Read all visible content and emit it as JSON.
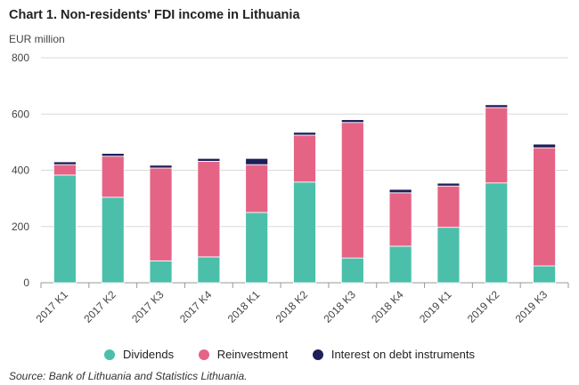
{
  "title": "Chart 1. Non-residents' FDI income in Lithuania",
  "source": "Source: Bank of Lithuania and Statistics Lithuania.",
  "colors": {
    "dividends": "#4bbfaa",
    "reinvestment": "#e56486",
    "interest": "#1f1f5a",
    "grid": "#d9d9d9",
    "axis": "#999999"
  },
  "chart_data": {
    "type": "bar",
    "stacked": true,
    "ylabel": "EUR million",
    "ylim": [
      0,
      800
    ],
    "yticks": [
      0,
      200,
      400,
      600,
      800
    ],
    "grid": true,
    "legend_position": "bottom",
    "categories": [
      "2017 K1",
      "2017 K2",
      "2017 K3",
      "2017 K4",
      "2018 K1",
      "2018 K2",
      "2018 K3",
      "2018 K4",
      "2019 K1",
      "2019 K2",
      "2019 K3"
    ],
    "series": [
      {
        "name": "Dividends",
        "color_key": "dividends",
        "values": [
          383,
          304,
          78,
          92,
          250,
          358,
          88,
          130,
          197,
          355,
          60
        ]
      },
      {
        "name": "Reinvestment",
        "color_key": "reinvestment",
        "values": [
          37,
          146,
          330,
          340,
          170,
          167,
          482,
          190,
          147,
          268,
          420
        ]
      },
      {
        "name": "Interest on debt instruments",
        "color_key": "interest",
        "values": [
          10,
          10,
          10,
          10,
          22,
          10,
          10,
          12,
          10,
          10,
          13
        ]
      }
    ]
  }
}
